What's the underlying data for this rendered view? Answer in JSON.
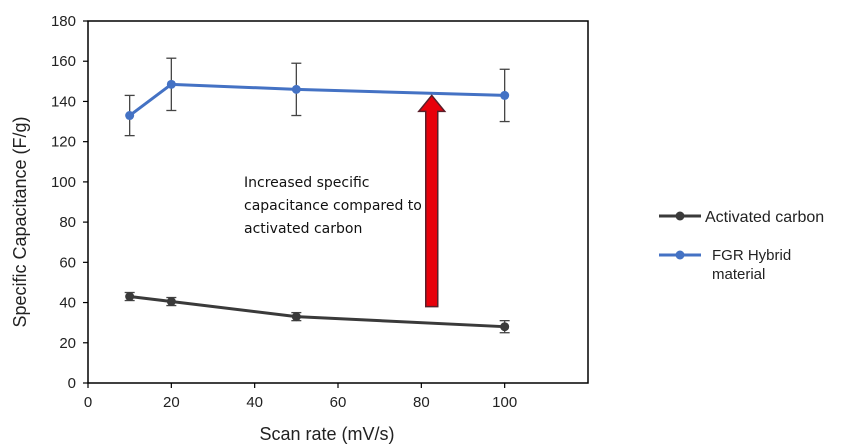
{
  "chart_data": {
    "type": "line",
    "xlabel": "Scan rate (mV/s)",
    "ylabel": "Specific Capacitance (F/g)",
    "xlim": [
      0,
      120
    ],
    "ylim": [
      0,
      180
    ],
    "x_ticks": [
      "0",
      "20",
      "40",
      "60",
      "80",
      "100"
    ],
    "y_ticks": [
      "0",
      "20",
      "40",
      "60",
      "80",
      "100",
      "120",
      "140",
      "160",
      "180"
    ],
    "grid": false,
    "legend_position": "right",
    "series": [
      {
        "name": "Activated carbon",
        "color": "#3a3a3a",
        "x": [
          10,
          20,
          50,
          100
        ],
        "y": [
          43,
          40.5,
          33,
          28
        ],
        "error": [
          2,
          2,
          2,
          3
        ]
      },
      {
        "name": "FGR Hybrid material",
        "name_lines": [
          "FGR Hybrid",
          "material"
        ],
        "color": "#4472c4",
        "x": [
          10,
          20,
          50,
          100
        ],
        "y": [
          133,
          148.5,
          146,
          143
        ],
        "error": [
          10,
          13,
          13,
          13
        ]
      }
    ],
    "annotation": {
      "lines": [
        "Increased specific",
        "capacitance compared to",
        "activated carbon"
      ]
    },
    "arrow": {
      "x": 82.5,
      "y_from": 38,
      "y_to": 143,
      "color": "#e8000b"
    }
  }
}
